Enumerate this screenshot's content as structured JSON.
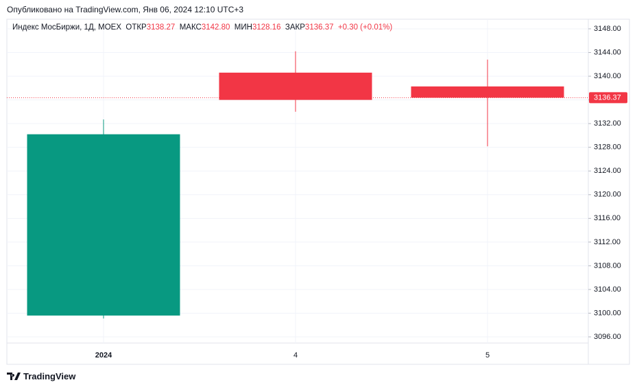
{
  "published": "Опубликовано на TradingView.com, Янв 06, 2024 12:10 UTC+3",
  "legend": {
    "name": "Индекс МосБиржи, 1Д, MOEX",
    "open_label": "ОТКР",
    "open": "3138.27",
    "high_label": "МАКС",
    "high": "3142.80",
    "low_label": "МИН",
    "low": "3128.16",
    "close_label": "ЗАКР",
    "close": "3136.37",
    "change": "+0.30 (+0.01%)"
  },
  "chart_data": {
    "type": "candlestick",
    "categories": [
      "2024",
      "4",
      "5"
    ],
    "open": [
      3099.6,
      3140.6,
      3138.27
    ],
    "high": [
      3132.7,
      3144.2,
      3142.8
    ],
    "low": [
      3099.1,
      3134.0,
      3128.16
    ],
    "close": [
      3130.2,
      3136.0,
      3136.37
    ],
    "up_color": "#089981",
    "down_color": "#f23645",
    "ylim": [
      3094.96,
      3149.62
    ],
    "yticks": [
      {
        "value": 3096,
        "label": "3096.00"
      },
      {
        "value": 3100,
        "label": "3100.00"
      },
      {
        "value": 3104,
        "label": "3104.00"
      },
      {
        "value": 3108,
        "label": "3108.00"
      },
      {
        "value": 3112,
        "label": "3112.00"
      },
      {
        "value": 3116,
        "label": "3116.00"
      },
      {
        "value": 3120,
        "label": "3120.00"
      },
      {
        "value": 3124,
        "label": "3124.00"
      },
      {
        "value": 3128,
        "label": "3128.00"
      },
      {
        "value": 3132,
        "label": "3132.00"
      },
      {
        "value": 3136,
        "label": "3136.00"
      },
      {
        "value": 3140,
        "label": "3140.00"
      },
      {
        "value": 3144,
        "label": "3144.00"
      },
      {
        "value": 3148,
        "label": "3148.00"
      }
    ],
    "last_price": {
      "value": 3136.37,
      "label": "3136.37"
    },
    "grid": true
  },
  "footer": "TradingView"
}
